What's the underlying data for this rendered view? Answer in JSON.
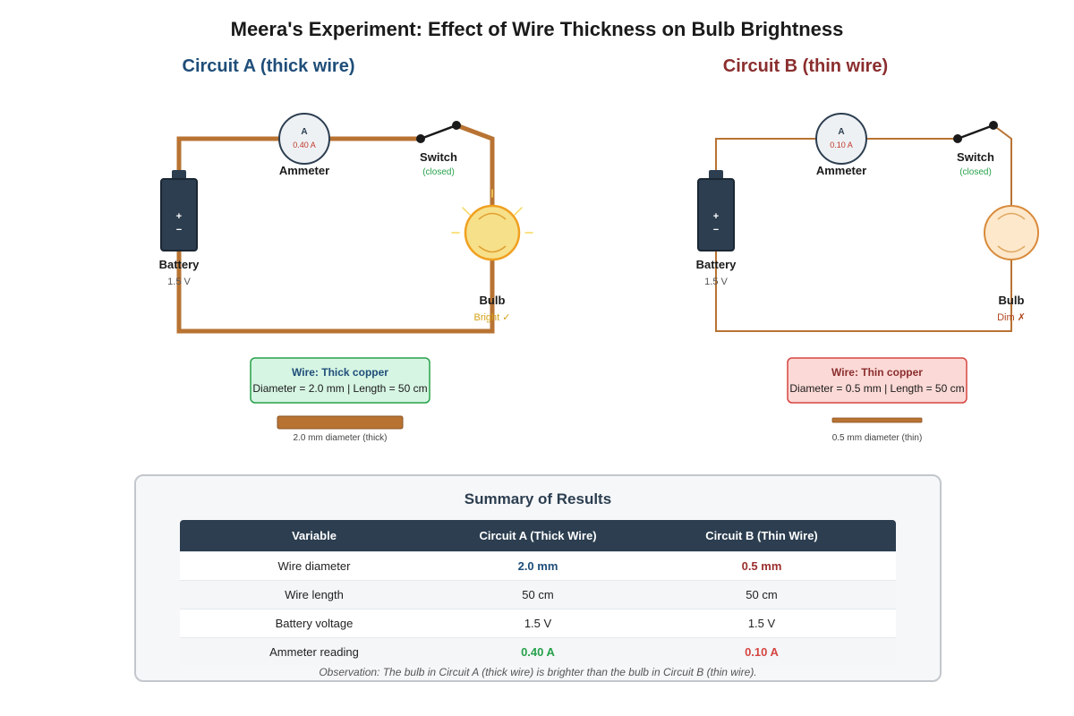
{
  "title": "Meera's Experiment: Effect of Wire Thickness on Bulb Brightness",
  "colors": {
    "wire": "#b87333",
    "battery": "#2c3e50",
    "circuit_a_heading": "#1f4e79",
    "circuit_b_heading": "#8b2e2e",
    "bright_bulb": "#f7e08a",
    "dim_bulb": "#fde8cc",
    "success": "#27a14a",
    "danger": "#d64541"
  },
  "circuit_a": {
    "heading": "Circuit A (thick wire)",
    "battery_symbols": [
      "+",
      "−"
    ],
    "battery_label": "Battery",
    "battery_voltage": "1.5 V",
    "ammeter_symbol": "A",
    "ammeter_reading": "0.40 A",
    "ammeter_label": "Ammeter",
    "switch_label": "Switch",
    "switch_state": "(closed)",
    "bulb_label": "Bulb",
    "bulb_state": "Bright ✓",
    "wire_title": "Wire: Thick copper",
    "wire_spec": "Diameter = 2.0 mm | Length = 50 cm",
    "sample_caption": "2.0 mm diameter (thick)"
  },
  "circuit_b": {
    "heading": "Circuit B (thin wire)",
    "battery_symbols": [
      "+",
      "−"
    ],
    "battery_label": "Battery",
    "battery_voltage": "1.5 V",
    "ammeter_symbol": "A",
    "ammeter_reading": "0.10 A",
    "ammeter_label": "Ammeter",
    "switch_label": "Switch",
    "switch_state": "(closed)",
    "bulb_label": "Bulb",
    "bulb_state": "Dim ✗",
    "wire_title": "Wire: Thin copper",
    "wire_spec": "Diameter = 0.5 mm | Length = 50 cm",
    "sample_caption": "0.5 mm diameter (thin)"
  },
  "summary": {
    "title": "Summary of Results",
    "headers": [
      "Variable",
      "Circuit A (Thick Wire)",
      "Circuit B (Thin Wire)"
    ],
    "rows": [
      [
        "Wire diameter",
        "2.0 mm",
        "0.5 mm"
      ],
      [
        "Wire length",
        "50 cm",
        "50 cm"
      ],
      [
        "Battery voltage",
        "1.5 V",
        "1.5 V"
      ],
      [
        "Ammeter reading",
        "0.40 A",
        "0.10 A"
      ]
    ],
    "observation": "Observation: The bulb in Circuit A (thick wire) is brighter than the bulb in Circuit B (thin wire)."
  }
}
